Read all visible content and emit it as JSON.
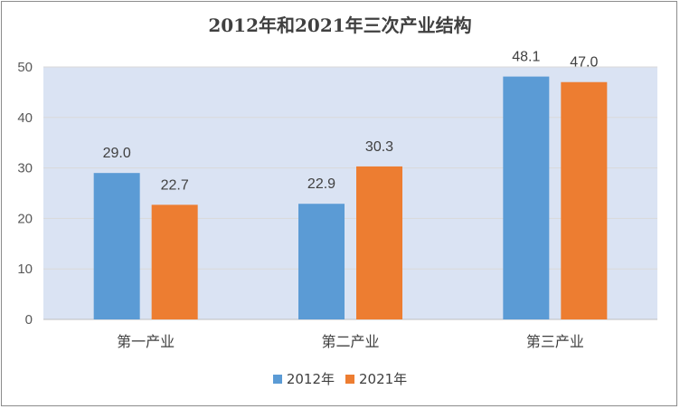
{
  "chart_data": {
    "type": "bar",
    "title": "2012年和2021年三次产业结构",
    "categories": [
      "第一产业",
      "第二产业",
      "第三产业"
    ],
    "series": [
      {
        "name": "2012年",
        "values": [
          29.0,
          22.9,
          48.1
        ],
        "color": "#5b9bd5"
      },
      {
        "name": "2021年",
        "values": [
          22.7,
          30.3,
          47.0
        ],
        "color": "#ed7d31"
      }
    ],
    "xlabel": "",
    "ylabel": "",
    "ylim": [
      0,
      50
    ],
    "yticks": [
      0,
      10,
      20,
      30,
      40,
      50
    ],
    "grid": true,
    "legend_position": "bottom",
    "plot_background": "#dae3f3",
    "data_labels": true
  }
}
